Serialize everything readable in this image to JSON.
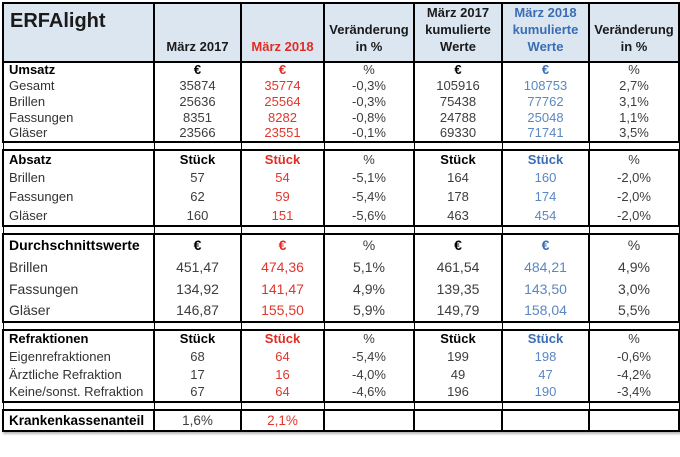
{
  "title": "ERFAlight",
  "colors": {
    "header_background": "#dce6f1",
    "accent_red": "#e02d23",
    "accent_blue": "#3a6db4",
    "value_blue": "#5b87c2",
    "border": "#000000"
  },
  "columns": [
    {
      "label": "März 2017"
    },
    {
      "label": "März 2018"
    },
    {
      "label": "Veränderung\nin %"
    },
    {
      "label": "März 2017\nkumulierte\nWerte"
    },
    {
      "label": "März 2018\nkumulierte\nWerte"
    },
    {
      "label": "Veränderung\nin %"
    }
  ],
  "sections": [
    {
      "key": "umsatz",
      "name": "Umsatz",
      "units": [
        "€",
        "€",
        "%",
        "€",
        "€",
        "%"
      ],
      "rows": [
        {
          "label": "Gesamt",
          "values": [
            "35874",
            "35774",
            "-0,3%",
            "105916",
            "108753",
            "2,7%"
          ]
        },
        {
          "label": "Brillen",
          "values": [
            "25636",
            "25564",
            "-0,3%",
            "75438",
            "77762",
            "3,1%"
          ]
        },
        {
          "label": "Fassungen",
          "values": [
            "8351",
            "8282",
            "-0,8%",
            "24788",
            "25048",
            "1,1%"
          ]
        },
        {
          "label": "Gläser",
          "values": [
            "23566",
            "23551",
            "-0,1%",
            "69330",
            "71741",
            "3,5%"
          ]
        }
      ]
    },
    {
      "key": "absatz",
      "name": "Absatz",
      "units": [
        "Stück",
        "Stück",
        "%",
        "Stück",
        "Stück",
        "%"
      ],
      "rows": [
        {
          "label": "Brillen",
          "values": [
            "57",
            "54",
            "-5,1%",
            "164",
            "160",
            "-2,0%"
          ]
        },
        {
          "label": "Fassungen",
          "values": [
            "62",
            "59",
            "-5,4%",
            "178",
            "174",
            "-2,0%"
          ]
        },
        {
          "label": "Gläser",
          "values": [
            "160",
            "151",
            "-5,6%",
            "463",
            "454",
            "-2,0%"
          ]
        }
      ]
    },
    {
      "key": "durchschnittswerte",
      "name": "Durchschnittswerte",
      "units": [
        "€",
        "€",
        "%",
        "€",
        "€",
        "%"
      ],
      "rows": [
        {
          "label": "Brillen",
          "values": [
            "451,47",
            "474,36",
            "5,1%",
            "461,54",
            "484,21",
            "4,9%"
          ]
        },
        {
          "label": "Fassungen",
          "values": [
            "134,92",
            "141,47",
            "4,9%",
            "139,35",
            "143,50",
            "3,0%"
          ]
        },
        {
          "label": "Gläser",
          "values": [
            "146,87",
            "155,50",
            "5,9%",
            "149,79",
            "158,04",
            "5,5%"
          ]
        }
      ]
    },
    {
      "key": "refraktionen",
      "name": "Refraktionen",
      "units": [
        "Stück",
        "Stück",
        "%",
        "Stück",
        "Stück",
        "%"
      ],
      "rows": [
        {
          "label": "Eigenrefraktionen",
          "values": [
            "68",
            "64",
            "-5,4%",
            "199",
            "198",
            "-0,6%"
          ]
        },
        {
          "label": "Ärztliche Refraktion",
          "values": [
            "17",
            "16",
            "-4,0%",
            "49",
            "47",
            "-4,2%"
          ]
        },
        {
          "label": "Keine/sonst. Refraktion",
          "values": [
            "67",
            "64",
            "-4,6%",
            "196",
            "190",
            "-3,4%"
          ]
        }
      ]
    },
    {
      "key": "krankenkassenanteil",
      "name": "Krankenkassenanteil",
      "single_row": true,
      "values": [
        "1,6%",
        "2,1%",
        "",
        "",
        "",
        ""
      ]
    }
  ]
}
